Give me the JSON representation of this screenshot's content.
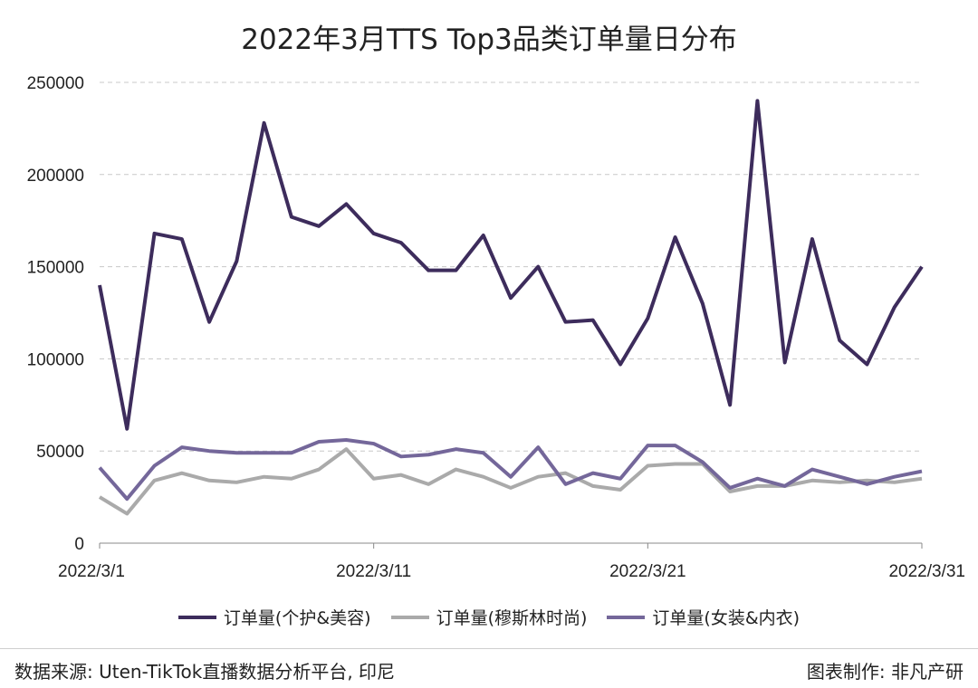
{
  "chart_data": {
    "type": "line",
    "title": "2022年3月TTS Top3品类订单量日分布",
    "x": [
      "2022/3/1",
      "2022/3/2",
      "2022/3/3",
      "2022/3/4",
      "2022/3/5",
      "2022/3/6",
      "2022/3/7",
      "2022/3/8",
      "2022/3/9",
      "2022/3/10",
      "2022/3/11",
      "2022/3/12",
      "2022/3/13",
      "2022/3/14",
      "2022/3/15",
      "2022/3/16",
      "2022/3/17",
      "2022/3/18",
      "2022/3/19",
      "2022/3/20",
      "2022/3/21",
      "2022/3/22",
      "2022/3/23",
      "2022/3/24",
      "2022/3/25",
      "2022/3/26",
      "2022/3/27",
      "2022/3/28",
      "2022/3/29",
      "2022/3/30",
      "2022/3/31"
    ],
    "x_tick_labels": [
      "2022/3/1",
      "2022/3/11",
      "2022/3/21",
      "2022/3/31"
    ],
    "y_tick_labels": [
      "0",
      "50000",
      "100000",
      "150000",
      "200000",
      "250000"
    ],
    "ylim": [
      0,
      250000
    ],
    "grid": "horizontal dashed",
    "legend_position": "bottom",
    "series": [
      {
        "name": "订单量(个护&美容)",
        "color": "#3d2c5c",
        "values": [
          140000,
          62000,
          168000,
          165000,
          120000,
          153000,
          228000,
          177000,
          172000,
          184000,
          168000,
          163000,
          148000,
          148000,
          167000,
          133000,
          150000,
          120000,
          121000,
          97000,
          122000,
          166000,
          130000,
          75000,
          240000,
          98000,
          165000,
          110000,
          97000,
          128000,
          150000
        ]
      },
      {
        "name": "订单量(穆斯林时尚)",
        "color": "#aaaaaa",
        "values": [
          25000,
          16000,
          34000,
          38000,
          34000,
          33000,
          36000,
          35000,
          40000,
          51000,
          35000,
          37000,
          32000,
          40000,
          36000,
          30000,
          36000,
          38000,
          31000,
          29000,
          42000,
          43000,
          43000,
          28000,
          31000,
          31000,
          34000,
          33000,
          34000,
          33000,
          35000
        ]
      },
      {
        "name": "订单量(女装&内衣)",
        "color": "#74679a",
        "values": [
          41000,
          24000,
          42000,
          52000,
          50000,
          49000,
          49000,
          49000,
          55000,
          56000,
          54000,
          47000,
          48000,
          51000,
          49000,
          36000,
          52000,
          32000,
          38000,
          35000,
          53000,
          53000,
          44000,
          30000,
          35000,
          31000,
          40000,
          36000,
          32000,
          36000,
          39000
        ]
      }
    ]
  },
  "footer": {
    "source": "数据来源: Uten-TikTok直播数据分析平台, 印尼",
    "credit": "图表制作: 非凡产研"
  }
}
